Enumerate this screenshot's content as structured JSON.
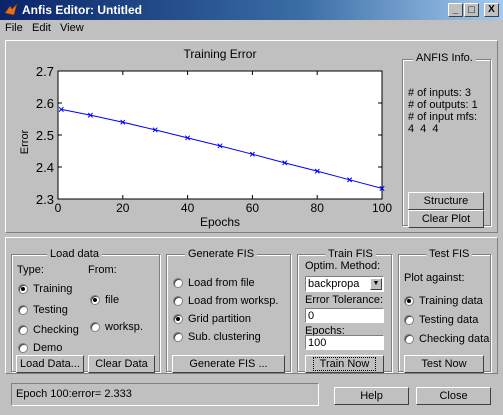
{
  "window": {
    "title": "Anfis Editor: Untitled",
    "minimize": "_",
    "maximize": "□",
    "close": "X"
  },
  "menu": [
    "File",
    "Edit",
    "View"
  ],
  "chart_data": {
    "type": "line",
    "title": "Training Error",
    "xlabel": "Epochs",
    "ylabel": "Error",
    "xlim": [
      0,
      100
    ],
    "ylim": [
      2.3,
      2.7
    ],
    "xticks": [
      0,
      20,
      40,
      60,
      80,
      100
    ],
    "yticks": [
      2.3,
      2.4,
      2.5,
      2.6,
      2.7
    ],
    "series": [
      {
        "marker": "x",
        "color": "#0000ff",
        "x": [
          1,
          10,
          20,
          30,
          40,
          50,
          60,
          70,
          80,
          90,
          100
        ],
        "y": [
          2.58,
          2.562,
          2.54,
          2.516,
          2.491,
          2.466,
          2.44,
          2.413,
          2.387,
          2.36,
          2.333
        ]
      }
    ]
  },
  "info": {
    "title": "ANFIS Info.",
    "inputs": "# of inputs: 3",
    "outputs": "# of outputs: 1",
    "input_mfs": "# of input mfs:",
    "mfs_values": "4 4 4",
    "structure_btn": "Structure",
    "clear_plot_btn": "Clear Plot"
  },
  "load_data": {
    "title": "Load data",
    "type_label": "Type:",
    "from_label": "From:",
    "types": [
      "Training",
      "Testing",
      "Checking",
      "Demo"
    ],
    "selected_type": "Training",
    "sources": [
      "file",
      "worksp."
    ],
    "selected_source": "file",
    "load_btn": "Load Data...",
    "clear_btn": "Clear Data"
  },
  "generate_fis": {
    "title": "Generate FIS",
    "options": [
      "Load from file",
      "Load from worksp.",
      "Grid partition",
      "Sub. clustering"
    ],
    "selected": "Grid partition",
    "button": "Generate FIS ..."
  },
  "train_fis": {
    "title": "Train FIS",
    "method_label": "Optim. Method:",
    "method_value": "backpropa",
    "tolerance_label": "Error Tolerance:",
    "tolerance_value": "0",
    "epochs_label": "Epochs:",
    "epochs_value": "100",
    "button": "Train Now"
  },
  "test_fis": {
    "title": "Test FIS",
    "plot_label": "Plot against:",
    "options": [
      "Training data",
      "Testing data",
      "Checking data"
    ],
    "selected": "Training data",
    "button": "Test Now"
  },
  "status": "Epoch 100:error= 2.333",
  "help_btn": "Help",
  "close_btn": "Close"
}
